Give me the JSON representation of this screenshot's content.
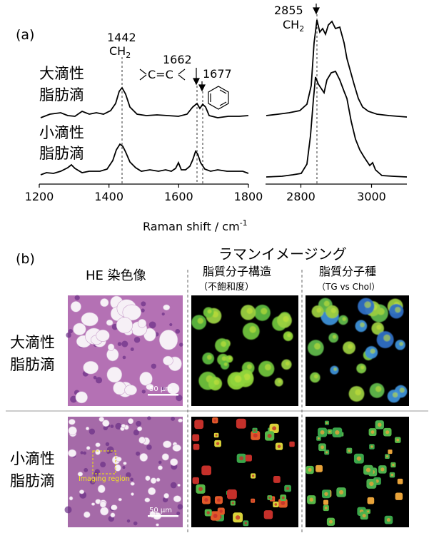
{
  "panel_a": {
    "label": "(a)",
    "xlabel": "Raman shift / cm",
    "xlabel_sup": "-1",
    "row_labels": {
      "large": [
        "大滴性",
        "脂肪滴"
      ],
      "small": [
        "小滴性",
        "脂肪滴"
      ]
    },
    "peaks": {
      "p1442": "1442",
      "p1662": "1662",
      "p1677": "1677",
      "p2855": "2855",
      "ch2": "CH",
      "ch2_sub": "2",
      "cc": "C=C"
    }
  },
  "panel_b": {
    "label": "(b)",
    "raman_imaging_title": "ラマンイメージング",
    "he_title": "HE 染色像",
    "col2_title": "脂質分子構造",
    "col2_sub": "（不飽和度）",
    "col3_title": "脂質分子種",
    "col3_sub": "（TG vs Chol）",
    "row_labels": {
      "large": [
        "大滴性",
        "脂肪滴"
      ],
      "small": [
        "小滴性",
        "脂肪滴"
      ]
    },
    "scale_bar": "50 μm",
    "imaging_region": "Imaging region"
  },
  "chart_data": [
    {
      "type": "line",
      "panel": "left",
      "x_ticks": [
        1200,
        1400,
        1600,
        1800
      ],
      "xlim": [
        1200,
        1800
      ],
      "series": [
        {
          "values": [
            [
              1200,
              0.05
            ],
            [
              1260,
              0.06
            ],
            [
              1300,
              0.1
            ],
            [
              1350,
              0.06
            ],
            [
              1400,
              0.09
            ],
            [
              1430,
              0.3
            ],
            [
              1442,
              0.55
            ],
            [
              1460,
              0.25
            ],
            [
              1500,
              0.08
            ],
            [
              1600,
              0.06
            ],
            [
              1640,
              0.15
            ],
            [
              1662,
              0.33
            ],
            [
              1677,
              0.28
            ],
            [
              1700,
              0.08
            ],
            [
              1800,
              0.06
            ]
          ]
        },
        {
          "values": [
            [
              1200,
              0.05
            ],
            [
              1260,
              0.07
            ],
            [
              1300,
              0.16
            ],
            [
              1350,
              0.08
            ],
            [
              1400,
              0.1
            ],
            [
              1430,
              0.35
            ],
            [
              1442,
              0.5
            ],
            [
              1460,
              0.28
            ],
            [
              1500,
              0.1
            ],
            [
              1550,
              0.14
            ],
            [
              1600,
              0.1
            ],
            [
              1640,
              0.2
            ],
            [
              1662,
              0.42
            ],
            [
              1677,
              0.22
            ],
            [
              1700,
              0.09
            ],
            [
              1800,
              0.06
            ]
          ]
        }
      ]
    },
    {
      "type": "line",
      "panel": "right",
      "x_ticks": [
        2800,
        3000
      ],
      "xlim": [
        2700,
        3100
      ],
      "series": [
        {
          "values": [
            [
              2700,
              0.1
            ],
            [
              2800,
              0.14
            ],
            [
              2840,
              0.45
            ],
            [
              2855,
              0.95
            ],
            [
              2880,
              0.88
            ],
            [
              2900,
              0.92
            ],
            [
              2930,
              0.8
            ],
            [
              2960,
              0.4
            ],
            [
              3000,
              0.18
            ],
            [
              3100,
              0.1
            ]
          ]
        },
        {
          "values": [
            [
              2700,
              0.05
            ],
            [
              2800,
              0.08
            ],
            [
              2840,
              0.4
            ],
            [
              2855,
              0.7
            ],
            [
              2880,
              0.55
            ],
            [
              2900,
              0.62
            ],
            [
              2930,
              0.48
            ],
            [
              2960,
              0.25
            ],
            [
              3000,
              0.12
            ],
            [
              3100,
              0.05
            ]
          ]
        }
      ]
    }
  ]
}
